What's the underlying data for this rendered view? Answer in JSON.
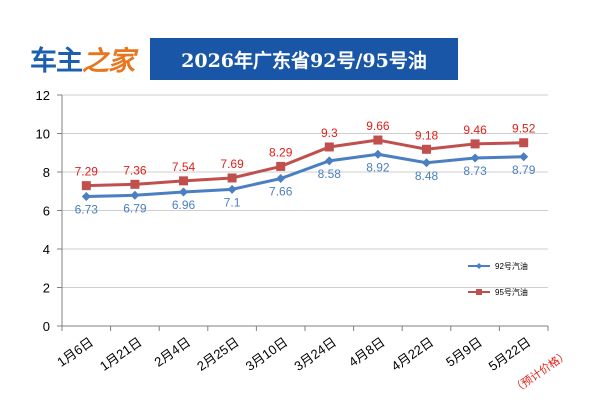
{
  "logo": {
    "part1": "车主",
    "part2": "之家"
  },
  "chart_data": {
    "type": "line",
    "title": "2026年广东省92号/95号油",
    "categories": [
      "1月6日",
      "1月21日",
      "2月4日",
      "2月25日",
      "3月10日",
      "3月24日",
      "4月8日",
      "4月22日",
      "5月9日",
      "5月22日"
    ],
    "annotation": "（预计价格）",
    "ylim": [
      0,
      12
    ],
    "yticks": [
      0,
      2,
      4,
      6,
      8,
      10,
      12
    ],
    "grid": true,
    "legend_position": "right",
    "series": [
      {
        "name": "92号汽油",
        "color": "#4a7fc1",
        "values": [
          6.73,
          6.79,
          6.96,
          7.1,
          7.66,
          8.58,
          8.92,
          8.48,
          8.73,
          8.79
        ]
      },
      {
        "name": "95号汽油",
        "color": "#c0504d",
        "label_color": "#e0201a",
        "values": [
          7.29,
          7.36,
          7.54,
          7.69,
          8.29,
          9.3,
          9.66,
          9.18,
          9.46,
          9.52
        ]
      }
    ]
  }
}
